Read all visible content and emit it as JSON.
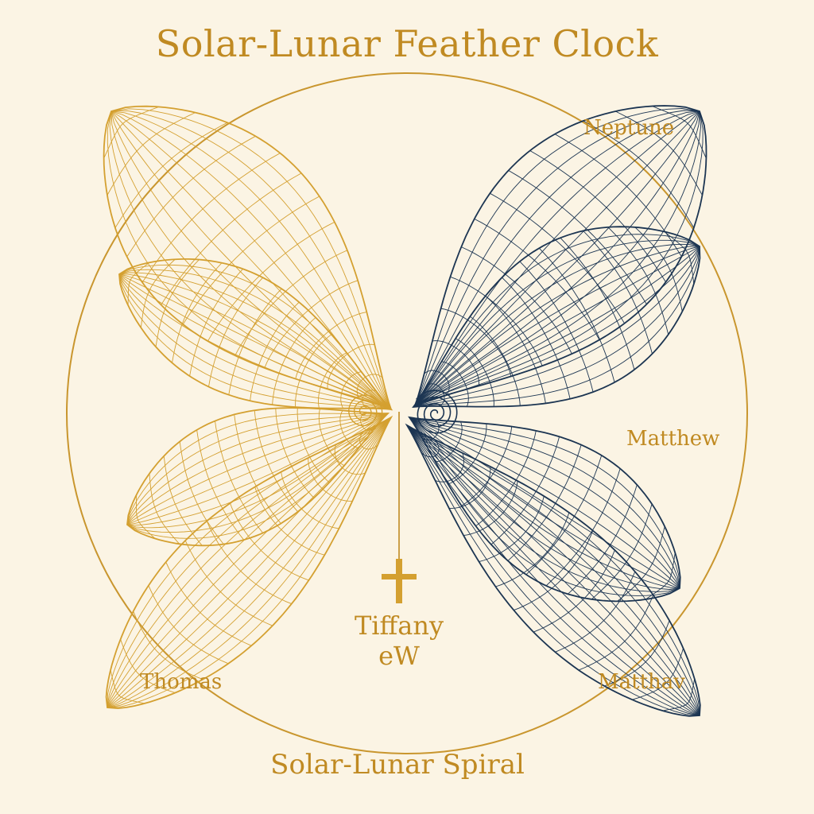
{
  "title": "Solar-Lunar Feather Clock",
  "subtitle": "Solar-Lunar Spiral",
  "labels": {
    "neptune": "Neptune",
    "matthew": "Matthew",
    "matthav": "Matthav",
    "thomas": "Thomas",
    "center_line1": "Tiffany",
    "center_line2": "eW"
  },
  "colors": {
    "background": "#fbf4e4",
    "gold": "#d4a030",
    "gold_text": "#c08a22",
    "navy": "#1c3552"
  },
  "icons": [
    "cross-icon",
    "solar-spiral-icon",
    "lunar-spiral-icon"
  ]
}
